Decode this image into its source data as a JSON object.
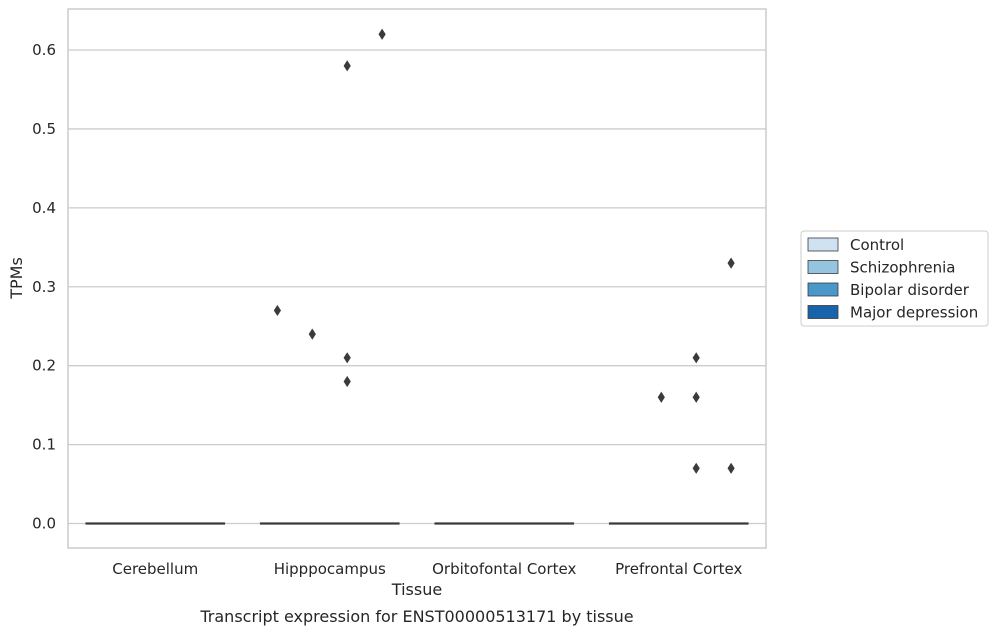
{
  "chart_data": {
    "type": "box",
    "caption": "Transcript expression for ENST00000513171 by tissue",
    "xlabel": "Tissue",
    "ylabel": "TPMs",
    "categories": [
      "Cerebellum",
      "Hipppocampus",
      "Orbitofontal Cortex",
      "Prefrontal Cortex"
    ],
    "ylim": [
      -0.031,
      0.652
    ],
    "yticks": [
      0.0,
      0.1,
      0.2,
      0.3,
      0.4,
      0.5,
      0.6
    ],
    "ytick_labels": [
      "0.0",
      "0.1",
      "0.2",
      "0.3",
      "0.4",
      "0.5",
      "0.6"
    ],
    "grid": "y",
    "legend_position": "right",
    "series": [
      {
        "name": "Control",
        "color": "#d0e1f2"
      },
      {
        "name": "Schizophrenia",
        "color": "#94c4df"
      },
      {
        "name": "Bipolar disorder",
        "color": "#4a98c9"
      },
      {
        "name": "Major depression",
        "color": "#1764ab"
      }
    ],
    "medians": [
      {
        "category": "Cerebellum",
        "value": 0.0
      },
      {
        "category": "Hipppocampus",
        "value": 0.0
      },
      {
        "category": "Orbitofontal Cortex",
        "value": 0.0
      },
      {
        "category": "Prefrontal Cortex",
        "value": 0.0
      }
    ],
    "outliers": [
      {
        "category": "Hipppocampus",
        "series": "Control",
        "value": 0.27
      },
      {
        "category": "Hipppocampus",
        "series": "Schizophrenia",
        "value": 0.24
      },
      {
        "category": "Hipppocampus",
        "series": "Bipolar disorder",
        "value": 0.21
      },
      {
        "category": "Hipppocampus",
        "series": "Bipolar disorder",
        "value": 0.18
      },
      {
        "category": "Hipppocampus",
        "series": "Bipolar disorder",
        "value": 0.58
      },
      {
        "category": "Hipppocampus",
        "series": "Major depression",
        "value": 0.62
      },
      {
        "category": "Prefrontal Cortex",
        "series": "Schizophrenia",
        "value": 0.16
      },
      {
        "category": "Prefrontal Cortex",
        "series": "Bipolar disorder",
        "value": 0.21
      },
      {
        "category": "Prefrontal Cortex",
        "series": "Bipolar disorder",
        "value": 0.16
      },
      {
        "category": "Prefrontal Cortex",
        "series": "Bipolar disorder",
        "value": 0.07
      },
      {
        "category": "Prefrontal Cortex",
        "series": "Major depression",
        "value": 0.33
      },
      {
        "category": "Prefrontal Cortex",
        "series": "Major depression",
        "value": 0.07
      }
    ],
    "colors": {
      "outlier": "#3b3b3b",
      "median_line": "#3b3b3b",
      "grid": "#cccccc",
      "frame": "#cccccc"
    }
  }
}
